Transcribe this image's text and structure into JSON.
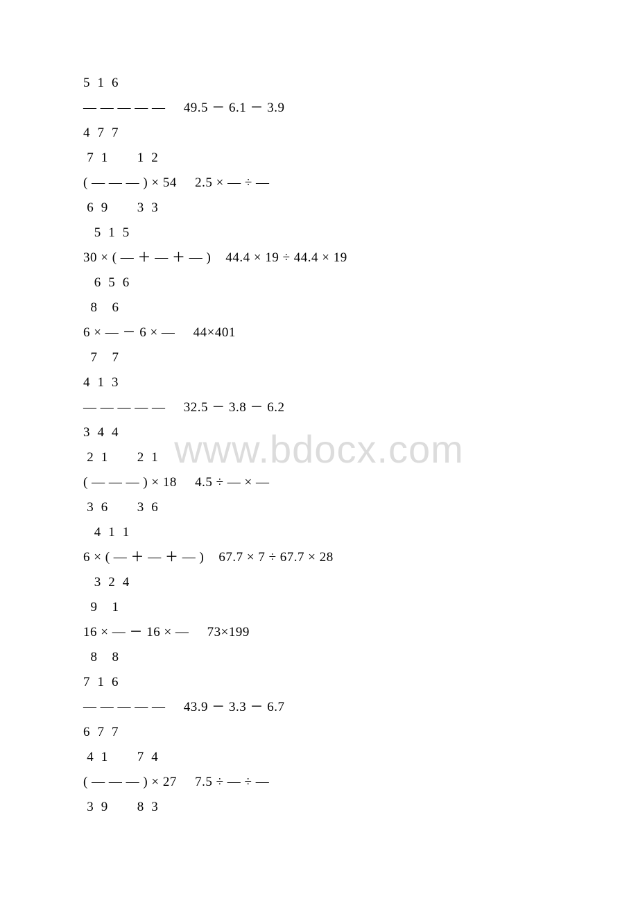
{
  "watermark": {
    "text": "www.bdocx.com",
    "color": "#dcdcdc",
    "fontsize": 56
  },
  "page": {
    "background_color": "#ffffff",
    "text_color": "#000000",
    "fontsize": 19
  },
  "lines": [
    "5  1  6",
    "― ― ― ― ―     49.5 － 6.1 － 3.9",
    "4  7  7",
    " 7  1        1  2",
    "( ― ― ― ) × 54     2.5 × ― ÷ ―",
    " 6  9        3  3",
    "   5  1  5",
    "30 × ( ― ＋ ― ＋ ― )    44.4 × 19 ÷ 44.4 × 19",
    "   6  5  6",
    "  8    6",
    "6 × ― － 6 × ―     44×401",
    "  7    7",
    "4  1  3",
    "― ― ― ― ―     32.5 － 3.8 － 6.2",
    "3  4  4",
    " 2  1        2  1",
    "( ― ― ― ) × 18     4.5 ÷ ― × ―",
    " 3  6        3  6",
    "   4  1  1",
    "6 × ( ― ＋ ― ＋ ― )    67.7 × 7 ÷ 67.7 × 28",
    "   3  2  4",
    "  9    1",
    "16 × ― － 16 × ―     73×199",
    "  8    8",
    "7  1  6",
    "― ― ― ― ―     43.9 － 3.3 － 6.7",
    "6  7  7",
    " 4  1        7  4",
    "( ― ― ― ) × 27     7.5 ÷ ― ÷ ―",
    " 3  9        8  3"
  ]
}
